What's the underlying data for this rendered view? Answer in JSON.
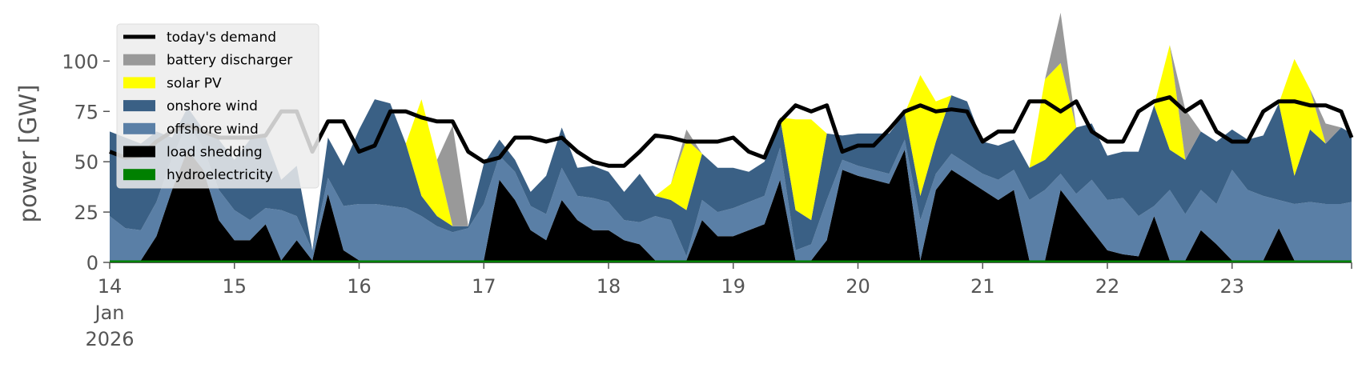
{
  "chart_data": {
    "type": "area",
    "ylabel": "power [GW]",
    "ylim": [
      0,
      120
    ],
    "xlim": [
      "2026-01-14 00:00",
      "2026-01-23 23:00"
    ],
    "yticks": [
      0,
      25,
      50,
      75,
      100
    ],
    "xticks": [
      {
        "at": "2026-01-14",
        "lines": [
          "14",
          "Jan",
          "2026"
        ]
      },
      {
        "at": "2026-01-15",
        "lines": [
          "15"
        ]
      },
      {
        "at": "2026-01-16",
        "lines": [
          "16"
        ]
      },
      {
        "at": "2026-01-17",
        "lines": [
          "17"
        ]
      },
      {
        "at": "2026-01-18",
        "lines": [
          "18"
        ]
      },
      {
        "at": "2026-01-19",
        "lines": [
          "19"
        ]
      },
      {
        "at": "2026-01-20",
        "lines": [
          "20"
        ]
      },
      {
        "at": "2026-01-21",
        "lines": [
          "21"
        ]
      },
      {
        "at": "2026-01-22",
        "lines": [
          "22"
        ]
      },
      {
        "at": "2026-01-23",
        "lines": [
          "23"
        ]
      }
    ],
    "grid": false,
    "legend_position": "top-left",
    "x": [
      "2026-01-14 00:00",
      "2026-01-14 03:00",
      "2026-01-14 06:00",
      "2026-01-14 09:00",
      "2026-01-14 12:00",
      "2026-01-14 15:00",
      "2026-01-14 18:00",
      "2026-01-14 21:00",
      "2026-01-15 00:00",
      "2026-01-15 03:00",
      "2026-01-15 06:00",
      "2026-01-15 09:00",
      "2026-01-15 12:00",
      "2026-01-15 15:00",
      "2026-01-15 18:00",
      "2026-01-15 21:00",
      "2026-01-16 00:00",
      "2026-01-16 03:00",
      "2026-01-16 06:00",
      "2026-01-16 09:00",
      "2026-01-16 12:00",
      "2026-01-16 15:00",
      "2026-01-16 18:00",
      "2026-01-16 21:00",
      "2026-01-17 00:00",
      "2026-01-17 03:00",
      "2026-01-17 06:00",
      "2026-01-17 09:00",
      "2026-01-17 12:00",
      "2026-01-17 15:00",
      "2026-01-17 18:00",
      "2026-01-17 21:00",
      "2026-01-18 00:00",
      "2026-01-18 03:00",
      "2026-01-18 06:00",
      "2026-01-18 09:00",
      "2026-01-18 12:00",
      "2026-01-18 15:00",
      "2026-01-18 18:00",
      "2026-01-18 21:00",
      "2026-01-19 00:00",
      "2026-01-19 03:00",
      "2026-01-19 06:00",
      "2026-01-19 09:00",
      "2026-01-19 12:00",
      "2026-01-19 15:00",
      "2026-01-19 18:00",
      "2026-01-19 21:00",
      "2026-01-20 00:00",
      "2026-01-20 03:00",
      "2026-01-20 06:00",
      "2026-01-20 09:00",
      "2026-01-20 12:00",
      "2026-01-20 15:00",
      "2026-01-20 18:00",
      "2026-01-20 21:00",
      "2026-01-21 00:00",
      "2026-01-21 03:00",
      "2026-01-21 06:00",
      "2026-01-21 09:00",
      "2026-01-21 12:00",
      "2026-01-21 15:00",
      "2026-01-21 18:00",
      "2026-01-21 21:00",
      "2026-01-22 00:00",
      "2026-01-22 03:00",
      "2026-01-22 06:00",
      "2026-01-22 09:00",
      "2026-01-22 12:00",
      "2026-01-22 15:00",
      "2026-01-22 18:00",
      "2026-01-22 21:00",
      "2026-01-23 00:00",
      "2026-01-23 03:00",
      "2026-01-23 06:00",
      "2026-01-23 09:00",
      "2026-01-23 12:00",
      "2026-01-23 15:00",
      "2026-01-23 18:00",
      "2026-01-23 21:00",
      "2026-01-23 23:00"
    ],
    "series": [
      {
        "name": "hydroelectricity",
        "color": "#008000",
        "kind": "area",
        "values": [
          1,
          1,
          1,
          1,
          1,
          1,
          1,
          1,
          1,
          1,
          1,
          1,
          1,
          1,
          1,
          1,
          1,
          1,
          1,
          1,
          1,
          1,
          1,
          1,
          1,
          1,
          1,
          1,
          1,
          1,
          1,
          1,
          1,
          1,
          1,
          1,
          1,
          1,
          1,
          1,
          1,
          1,
          1,
          1,
          1,
          1,
          1,
          1,
          1,
          1,
          1,
          1,
          1,
          1,
          1,
          1,
          1,
          1,
          1,
          1,
          1,
          1,
          1,
          1,
          1,
          1,
          1,
          1,
          1,
          1,
          1,
          1,
          1,
          1,
          1,
          1,
          1,
          1,
          1,
          1,
          1
        ]
      },
      {
        "name": "load shedding",
        "color": "#000000",
        "kind": "area",
        "values": [
          0,
          0,
          0,
          12,
          35,
          55,
          45,
          20,
          10,
          10,
          18,
          0,
          10,
          0,
          33,
          5,
          0,
          0,
          0,
          0,
          0,
          0,
          0,
          0,
          0,
          40,
          30,
          15,
          10,
          30,
          20,
          15,
          15,
          10,
          8,
          0,
          0,
          0,
          20,
          12,
          12,
          15,
          18,
          40,
          0,
          0,
          10,
          45,
          42,
          40,
          38,
          55,
          0,
          35,
          45,
          40,
          35,
          30,
          35,
          0,
          0,
          35,
          25,
          15,
          5,
          3,
          2,
          22,
          0,
          0,
          15,
          8,
          0,
          0,
          0,
          16,
          0,
          0,
          0,
          0,
          0
        ]
      },
      {
        "name": "offshore wind",
        "color": "#5a7fa6",
        "kind": "area",
        "values": [
          22,
          16,
          15,
          17,
          16,
          13,
          11,
          15,
          15,
          10,
          8,
          25,
          12,
          5,
          8,
          22,
          28,
          28,
          27,
          26,
          22,
          17,
          14,
          16,
          28,
          12,
          14,
          12,
          13,
          16,
          12,
          16,
          14,
          10,
          11,
          22,
          20,
          2,
          10,
          12,
          14,
          14,
          14,
          16,
          5,
          8,
          20,
          5,
          5,
          5,
          5,
          5,
          20,
          8,
          8,
          8,
          8,
          10,
          10,
          30,
          35,
          8,
          8,
          25,
          25,
          28,
          20,
          5,
          35,
          23,
          20,
          20,
          45,
          35,
          32,
          14,
          28,
          29,
          28,
          28,
          29
        ]
      },
      {
        "name": "onshore wind",
        "color": "#3a6085",
        "kind": "area",
        "values": [
          42,
          45,
          43,
          35,
          10,
          8,
          9,
          25,
          25,
          40,
          35,
          15,
          25,
          0,
          20,
          20,
          37,
          52,
          51,
          32,
          10,
          5,
          3,
          1,
          20,
          8,
          6,
          7,
          19,
          20,
          14,
          16,
          15,
          14,
          24,
          10,
          10,
          23,
          23,
          22,
          20,
          15,
          17,
          15,
          20,
          12,
          33,
          12,
          16,
          18,
          20,
          13,
          12,
          16,
          29,
          31,
          16,
          17,
          15,
          16,
          15,
          15,
          33,
          28,
          22,
          23,
          32,
          50,
          20,
          27,
          29,
          31,
          20,
          25,
          30,
          48,
          14,
          36,
          30,
          38,
          34
        ]
      },
      {
        "name": "solar PV",
        "color": "#ffff00",
        "kind": "area",
        "values": [
          0,
          0,
          0,
          0,
          0,
          0,
          0,
          0,
          0,
          0,
          0,
          0,
          0,
          0,
          0,
          0,
          0,
          0,
          0,
          0,
          48,
          28,
          0,
          0,
          0,
          0,
          0,
          0,
          0,
          0,
          0,
          0,
          0,
          0,
          0,
          0,
          8,
          35,
          0,
          0,
          0,
          0,
          0,
          0,
          45,
          50,
          0,
          0,
          0,
          0,
          0,
          0,
          60,
          20,
          0,
          0,
          0,
          0,
          0,
          0,
          40,
          40,
          0,
          0,
          0,
          0,
          0,
          0,
          52,
          0,
          0,
          0,
          0,
          0,
          0,
          0,
          58,
          20,
          0,
          0,
          0
        ]
      },
      {
        "name": "battery discharger",
        "color": "#999999",
        "kind": "area",
        "values": [
          0,
          0,
          0,
          0,
          0,
          0,
          0,
          0,
          0,
          0,
          0,
          0,
          0,
          0,
          0,
          0,
          0,
          0,
          0,
          0,
          0,
          0,
          50,
          0,
          0,
          0,
          0,
          0,
          0,
          0,
          0,
          0,
          0,
          0,
          0,
          0,
          0,
          5,
          0,
          0,
          0,
          0,
          0,
          0,
          0,
          0,
          0,
          0,
          0,
          0,
          0,
          0,
          0,
          0,
          0,
          0,
          0,
          0,
          0,
          0,
          0,
          25,
          0,
          0,
          0,
          0,
          0,
          0,
          0,
          25,
          0,
          0,
          0,
          0,
          0,
          0,
          0,
          0,
          10,
          0,
          0
        ]
      },
      {
        "name": "today's demand",
        "color": "#000000",
        "kind": "line",
        "values": [
          55,
          52,
          53,
          60,
          65,
          68,
          65,
          62,
          62,
          62,
          63,
          75,
          75,
          55,
          70,
          70,
          55,
          58,
          75,
          75,
          72,
          70,
          70,
          55,
          50,
          52,
          62,
          62,
          60,
          62,
          55,
          50,
          48,
          48,
          55,
          63,
          62,
          60,
          60,
          60,
          62,
          55,
          52,
          70,
          78,
          75,
          78,
          55,
          58,
          58,
          66,
          75,
          78,
          75,
          76,
          75,
          60,
          65,
          65,
          80,
          80,
          75,
          80,
          65,
          60,
          60,
          75,
          80,
          82,
          75,
          80,
          65,
          60,
          60,
          75,
          80,
          80,
          78,
          78,
          75,
          62
        ]
      }
    ]
  }
}
